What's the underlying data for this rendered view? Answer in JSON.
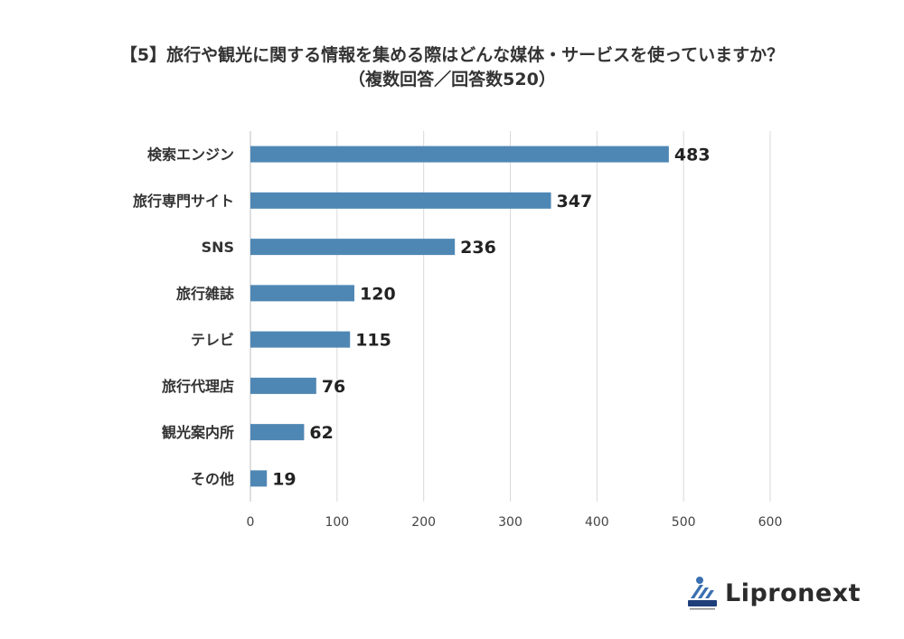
{
  "header": {
    "title_line1": "【5】旅行や観光に関する情報を集める際はどんな媒体・サービスを使っていますか？",
    "title_line2": "（複数回答／回答数520）"
  },
  "chart_data": {
    "type": "bar",
    "orientation": "horizontal",
    "categories": [
      "検索エンジン",
      "旅行専門サイト",
      "SNS",
      "旅行雑誌",
      "テレビ",
      "旅行代理店",
      "観光案内所",
      "その他"
    ],
    "values": [
      483,
      347,
      236,
      120,
      115,
      76,
      62,
      19
    ],
    "xlim": [
      0,
      600
    ],
    "xticks": [
      "0",
      "100",
      "200",
      "300",
      "400",
      "500",
      "600"
    ],
    "grid": true,
    "bar_color": "#4f87b4",
    "data_labels": true
  },
  "logo": {
    "text": "Lipronext"
  }
}
